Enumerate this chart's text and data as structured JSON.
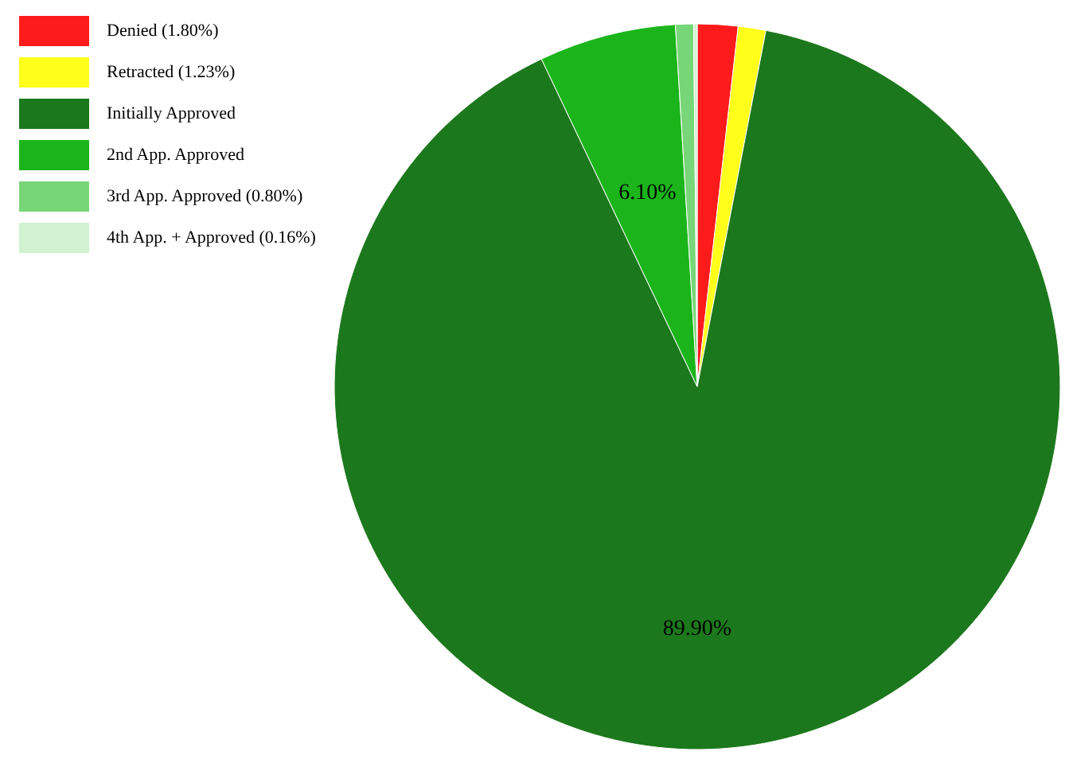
{
  "chart_data": {
    "type": "pie",
    "categories": [
      "Denied (1.80%)",
      "Retracted (1.23%)",
      "Initially Approved",
      "2nd App. Approved",
      "3rd App. Approved (0.80%)",
      "4th App. + Approved (0.16%)"
    ],
    "values": [
      1.8,
      1.23,
      89.9,
      6.1,
      0.8,
      0.16
    ],
    "colors": [
      "#fe1b1b",
      "#ffff1b",
      "#1c781c",
      "#1bb51b",
      "#77d677",
      "#d1f2d1"
    ],
    "value_labels": [
      null,
      null,
      "89.90%",
      "6.10%",
      null,
      null
    ],
    "legend": "top left"
  }
}
